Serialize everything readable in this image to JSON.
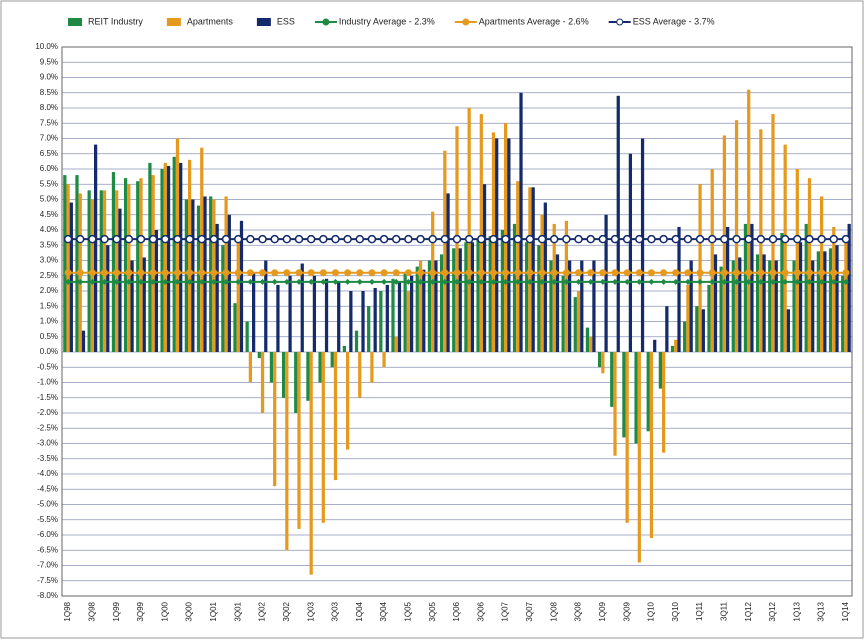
{
  "chart_data": {
    "type": "bar",
    "categories": [
      "1Q98",
      null,
      "3Q98",
      null,
      "1Q99",
      null,
      "3Q99",
      null,
      "1Q00",
      null,
      "3Q00",
      null,
      "1Q01",
      null,
      "3Q01",
      null,
      "1Q02",
      null,
      "3Q02",
      null,
      "1Q03",
      null,
      "3Q03",
      null,
      "1Q04",
      null,
      "3Q04",
      null,
      "1Q05",
      null,
      "3Q05",
      null,
      "1Q06",
      null,
      "3Q06",
      null,
      "1Q07",
      null,
      "3Q07",
      null,
      "1Q08",
      null,
      "3Q08",
      null,
      "1Q09",
      null,
      "3Q09",
      null,
      "1Q10",
      null,
      "3Q10",
      null,
      "1Q11",
      null,
      "3Q11",
      null,
      "1Q12",
      null,
      "3Q12",
      null,
      "1Q13",
      null,
      "3Q13",
      null,
      "1Q14"
    ],
    "series": [
      {
        "name": "REIT Industry",
        "kind": "bar",
        "color": "#1e8a44",
        "values": [
          5.8,
          5.8,
          5.3,
          5.3,
          5.9,
          5.7,
          5.6,
          6.2,
          6.0,
          6.4,
          5.0,
          4.8,
          5.1,
          3.5,
          1.6,
          1.0,
          -0.2,
          -1.0,
          -1.5,
          -2.0,
          -1.6,
          -1.0,
          -0.5,
          0.2,
          0.7,
          1.5,
          2.0,
          2.4,
          2.6,
          2.8,
          3.0,
          3.2,
          3.4,
          3.6,
          3.7,
          3.8,
          4.0,
          4.2,
          3.6,
          3.5,
          3.0,
          2.5,
          1.8,
          0.8,
          -0.5,
          -1.8,
          -2.8,
          -3.0,
          -2.6,
          -1.2,
          0.2,
          1.0,
          1.5,
          2.2,
          2.8,
          3.0,
          4.2,
          3.2,
          3.0,
          3.9,
          3.0,
          4.2,
          3.3,
          3.4,
          2.5
        ]
      },
      {
        "name": "Apartments",
        "kind": "bar",
        "color": "#e59a1e",
        "values": [
          5.5,
          5.2,
          5.0,
          5.3,
          5.3,
          5.5,
          5.7,
          5.8,
          6.2,
          7.0,
          6.3,
          6.7,
          5.0,
          5.1,
          3.8,
          -1.0,
          -2.0,
          -4.4,
          -6.5,
          -5.8,
          -7.3,
          -5.6,
          -4.2,
          -3.2,
          -1.5,
          -1.0,
          -0.5,
          0.5,
          2.0,
          3.0,
          4.6,
          6.6,
          7.4,
          8.0,
          7.8,
          7.2,
          7.5,
          5.6,
          5.4,
          4.5,
          4.2,
          4.3,
          2.0,
          0.5,
          -0.7,
          -3.4,
          -5.6,
          -6.9,
          -6.1,
          -3.3,
          0.4,
          2.2,
          5.5,
          6.0,
          7.1,
          7.6,
          8.6,
          7.3,
          7.8,
          6.8,
          6.0,
          5.7,
          5.1,
          4.1,
          3.7
        ]
      },
      {
        "name": "ESS",
        "kind": "bar",
        "color": "#142a6b",
        "values": [
          4.9,
          0.7,
          6.8,
          3.5,
          4.7,
          3.0,
          3.1,
          4.0,
          6.1,
          6.2,
          5.0,
          5.1,
          4.2,
          4.5,
          4.3,
          2.6,
          3.0,
          2.2,
          2.5,
          2.9,
          2.5,
          2.4,
          2.3,
          2.0,
          2.0,
          2.1,
          2.2,
          2.3,
          2.5,
          2.7,
          3.0,
          5.2,
          3.4,
          3.6,
          5.5,
          7.0,
          7.0,
          8.5,
          5.4,
          4.9,
          3.2,
          3.0,
          3.0,
          3.0,
          4.5,
          8.4,
          6.5,
          7.0,
          0.4,
          1.5,
          4.1,
          3.0,
          1.4,
          3.2,
          4.1,
          3.1,
          4.2,
          3.2,
          3.0,
          1.4,
          3.6,
          3.0,
          3.3,
          3.5,
          4.2
        ]
      },
      {
        "name": "Industry Average - 2.3%",
        "kind": "line",
        "marker": "diamond",
        "color": "#1e8a44",
        "values": [
          2.3,
          2.3,
          2.3,
          2.3,
          2.3,
          2.3,
          2.3,
          2.3,
          2.3,
          2.3,
          2.3,
          2.3,
          2.3,
          2.3,
          2.3,
          2.3,
          2.3,
          2.3,
          2.3,
          2.3,
          2.3,
          2.3,
          2.3,
          2.3,
          2.3,
          2.3,
          2.3,
          2.3,
          2.3,
          2.3,
          2.3,
          2.3,
          2.3,
          2.3,
          2.3,
          2.3,
          2.3,
          2.3,
          2.3,
          2.3,
          2.3,
          2.3,
          2.3,
          2.3,
          2.3,
          2.3,
          2.3,
          2.3,
          2.3,
          2.3,
          2.3,
          2.3,
          2.3,
          2.3,
          2.3,
          2.3,
          2.3,
          2.3,
          2.3,
          2.3,
          2.3,
          2.3,
          2.3,
          2.3,
          2.3
        ]
      },
      {
        "name": "Apartments Average - 2.6%",
        "kind": "line",
        "marker": "circle",
        "color": "#e59a1e",
        "values": [
          2.6,
          2.6,
          2.6,
          2.6,
          2.6,
          2.6,
          2.6,
          2.6,
          2.6,
          2.6,
          2.6,
          2.6,
          2.6,
          2.6,
          2.6,
          2.6,
          2.6,
          2.6,
          2.6,
          2.6,
          2.6,
          2.6,
          2.6,
          2.6,
          2.6,
          2.6,
          2.6,
          2.6,
          2.6,
          2.6,
          2.6,
          2.6,
          2.6,
          2.6,
          2.6,
          2.6,
          2.6,
          2.6,
          2.6,
          2.6,
          2.6,
          2.6,
          2.6,
          2.6,
          2.6,
          2.6,
          2.6,
          2.6,
          2.6,
          2.6,
          2.6,
          2.6,
          2.6,
          2.6,
          2.6,
          2.6,
          2.6,
          2.6,
          2.6,
          2.6,
          2.6,
          2.6,
          2.6,
          2.6,
          2.6
        ]
      },
      {
        "name": "ESS Average - 3.7%",
        "kind": "line",
        "marker": "ring",
        "color": "#142a6b",
        "values": [
          3.7,
          3.7,
          3.7,
          3.7,
          3.7,
          3.7,
          3.7,
          3.7,
          3.7,
          3.7,
          3.7,
          3.7,
          3.7,
          3.7,
          3.7,
          3.7,
          3.7,
          3.7,
          3.7,
          3.7,
          3.7,
          3.7,
          3.7,
          3.7,
          3.7,
          3.7,
          3.7,
          3.7,
          3.7,
          3.7,
          3.7,
          3.7,
          3.7,
          3.7,
          3.7,
          3.7,
          3.7,
          3.7,
          3.7,
          3.7,
          3.7,
          3.7,
          3.7,
          3.7,
          3.7,
          3.7,
          3.7,
          3.7,
          3.7,
          3.7,
          3.7,
          3.7,
          3.7,
          3.7,
          3.7,
          3.7,
          3.7,
          3.7,
          3.7,
          3.7,
          3.7,
          3.7,
          3.7,
          3.7,
          3.7
        ]
      }
    ],
    "ylim": [
      -8,
      10
    ],
    "yticks": [
      {
        "value": -8,
        "label": "-8.0%"
      },
      {
        "value": -7.5,
        "label": "-7.5%"
      },
      {
        "value": -7,
        "label": "-7.0%"
      },
      {
        "value": -6.5,
        "label": "-6.5%"
      },
      {
        "value": -6,
        "label": "-6.0%"
      },
      {
        "value": -5.5,
        "label": "-5.5%"
      },
      {
        "value": -5,
        "label": "-5.0%"
      },
      {
        "value": -4.5,
        "label": "-4.5%"
      },
      {
        "value": -4,
        "label": "-4.0%"
      },
      {
        "value": -3.5,
        "label": "-3.5%"
      },
      {
        "value": -3,
        "label": "-3.0%"
      },
      {
        "value": -2.5,
        "label": "-2.5%"
      },
      {
        "value": -2,
        "label": "-2.0%"
      },
      {
        "value": -1.5,
        "label": "-1.5%"
      },
      {
        "value": -1,
        "label": "-1.0%"
      },
      {
        "value": -0.5,
        "label": "-0.5%"
      },
      {
        "value": 0,
        "label": "0.0%"
      },
      {
        "value": 0.5,
        "label": "0.5%"
      },
      {
        "value": 1,
        "label": "1.0%"
      },
      {
        "value": 1.5,
        "label": "1.5%"
      },
      {
        "value": 2,
        "label": "2.0%"
      },
      {
        "value": 2.5,
        "label": "2.5%"
      },
      {
        "value": 3,
        "label": "3.0%"
      },
      {
        "value": 3.5,
        "label": "3.5%"
      },
      {
        "value": 4,
        "label": "4.0%"
      },
      {
        "value": 4.5,
        "label": "4.5%"
      },
      {
        "value": 5,
        "label": "5.0%"
      },
      {
        "value": 5.5,
        "label": "5.5%"
      },
      {
        "value": 6,
        "label": "6.0%"
      },
      {
        "value": 6.5,
        "label": "6.5%"
      },
      {
        "value": 7,
        "label": "7.0%"
      },
      {
        "value": 7.5,
        "label": "7.5%"
      },
      {
        "value": 8,
        "label": "8.0%"
      },
      {
        "value": 8.5,
        "label": "8.5%"
      },
      {
        "value": 9,
        "label": "9.0%"
      },
      {
        "value": 9.5,
        "label": "9.5%"
      },
      {
        "value": 10,
        "label": "10.0%"
      }
    ],
    "grid": true,
    "legend": "top"
  }
}
